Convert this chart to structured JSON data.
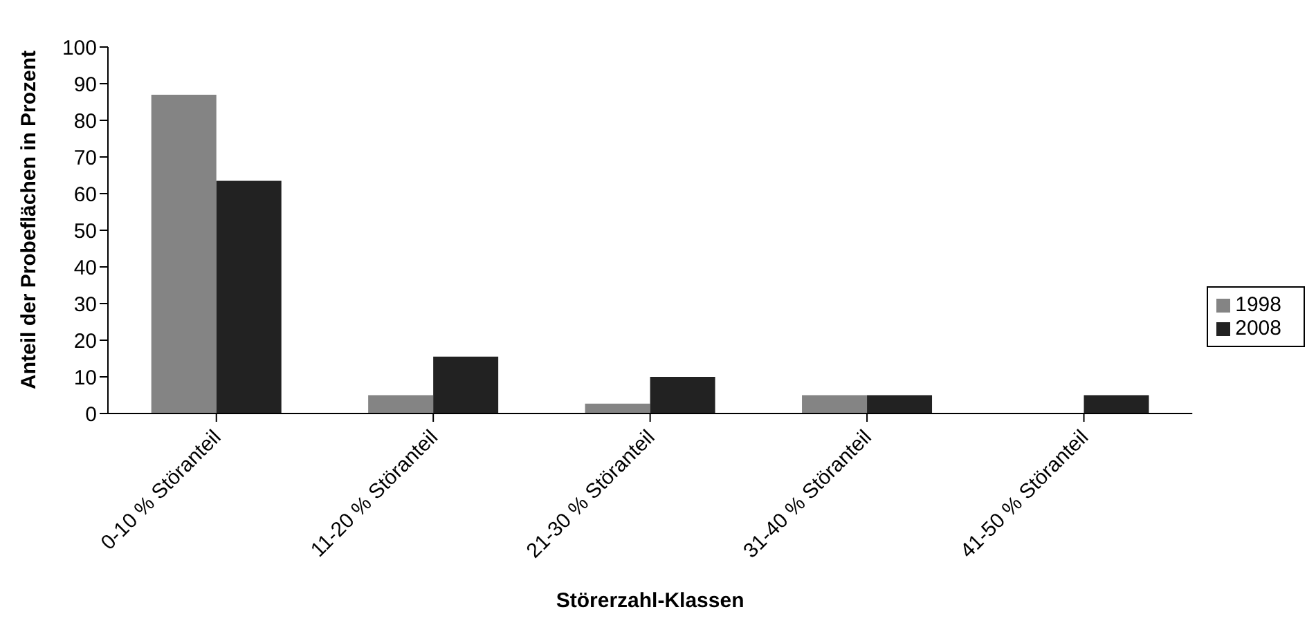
{
  "chart_data": {
    "type": "bar",
    "xlabel": "Störerzahl-Klassen",
    "ylabel": "Anteil der Probeflächen in Prozent",
    "categories": [
      "0-10 % Störanteil",
      "11-20 % Störanteil",
      "21-30 % Störanteil",
      "31-40 % Störanteil",
      "41-50 % Störanteil"
    ],
    "series": [
      {
        "name": "1998",
        "color": "#848484",
        "values": [
          87,
          5,
          2.7,
          5,
          0
        ]
      },
      {
        "name": "2008",
        "color": "#222222",
        "values": [
          63.5,
          15.5,
          10,
          5,
          5
        ]
      }
    ],
    "ylim": [
      0,
      100
    ],
    "yticks": [
      0,
      10,
      20,
      30,
      40,
      50,
      60,
      70,
      80,
      90,
      100
    ],
    "grid": false,
    "legend": "right"
  }
}
